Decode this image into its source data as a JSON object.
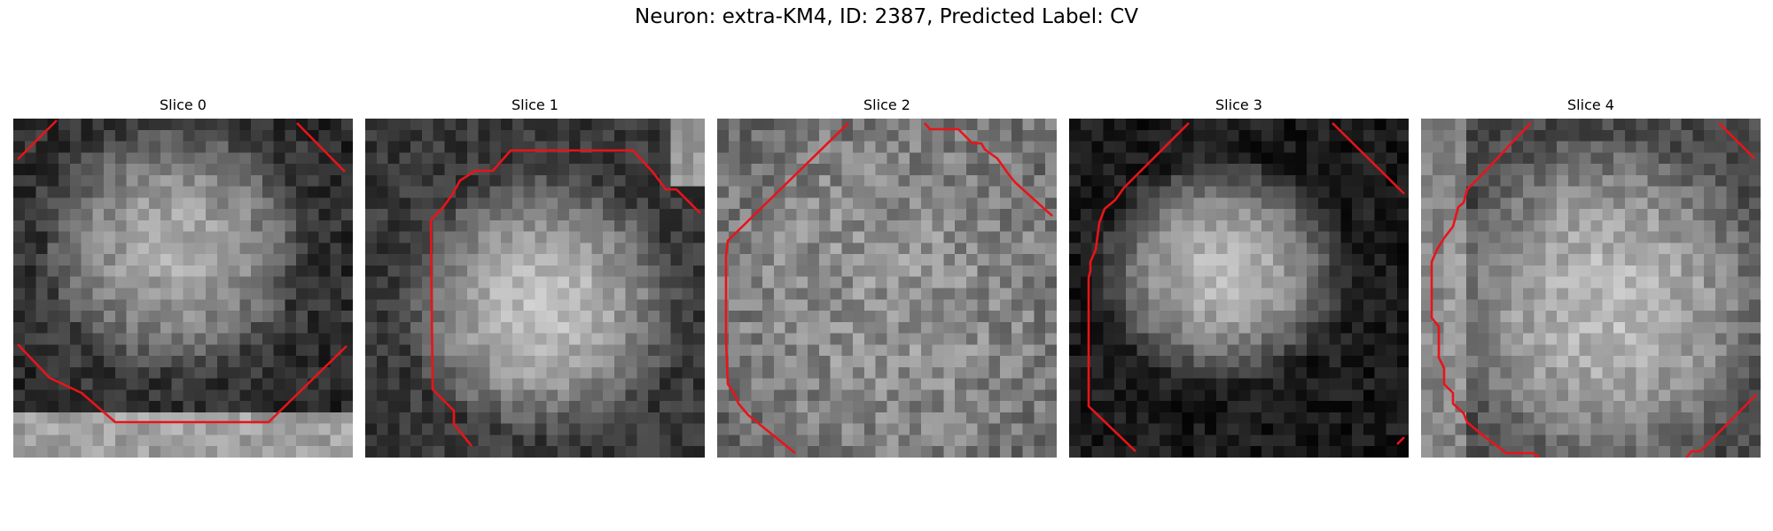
{
  "figure": {
    "title": "Neuron: extra-KM4, ID: 2387, Predicted Label: CV"
  },
  "colors": {
    "contour": "#e8141a",
    "background": "#ffffff"
  },
  "slices": [
    {
      "title": "Slice 0"
    },
    {
      "title": "Slice 1"
    },
    {
      "title": "Slice 2"
    },
    {
      "title": "Slice 3"
    },
    {
      "title": "Slice 4"
    }
  ]
}
